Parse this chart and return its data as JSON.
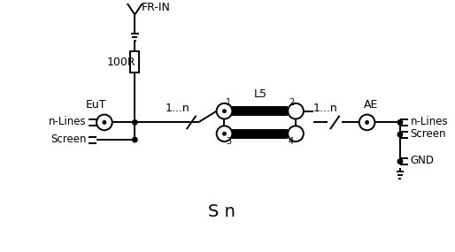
{
  "bg_color": "#ffffff",
  "line_color": "#000000",
  "labels": {
    "FR_IN": "FR-IN",
    "100R": "100R",
    "EuT": "EuT",
    "n_lines_left": "n-Lines",
    "screen_left": "Screen",
    "1_n_left": "1...n",
    "L5": "L5",
    "1_n_right": "1...n",
    "AE": "AE",
    "n_lines_right": "n-Lines",
    "screen_right": "Screen",
    "GND": "GND",
    "Sn": "S n",
    "pin1": "1",
    "pin2": "2",
    "pin3": "3",
    "pin4": "4"
  }
}
